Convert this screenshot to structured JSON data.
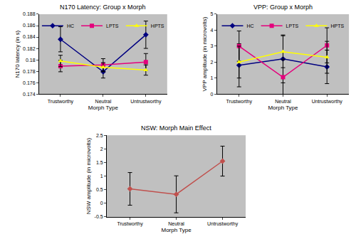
{
  "chart_data": [
    {
      "type": "line",
      "title": "N170 Latency: Group x Morph",
      "x_label": "Morph Type",
      "y_label": "N170 latency (in s)",
      "categories": [
        "Trustworthy",
        "Neutral",
        "Untrustworthy"
      ],
      "series": [
        {
          "name": "HC",
          "color": "#000080",
          "marker": "diamond",
          "values": [
            0.1836,
            0.1779,
            0.1844
          ],
          "errors": [
            0.0022,
            0.0011,
            0.0024
          ]
        },
        {
          "name": "LPTS",
          "color": "#e4007c",
          "marker": "square",
          "values": [
            0.1789,
            0.1791,
            0.1796
          ],
          "errors": [
            0.001,
            0.0011,
            0.0015
          ]
        },
        {
          "name": "HPTS",
          "color": "#ffff00",
          "marker": "triangle",
          "values": [
            0.1798,
            0.1787,
            0.1782
          ],
          "errors": [
            0.001,
            0.0008,
            0.0009
          ]
        }
      ],
      "ylim": [
        0.174,
        0.188
      ],
      "yticks": [
        0.174,
        0.176,
        0.178,
        0.18,
        0.182,
        0.184,
        0.186,
        0.188
      ],
      "grid": false,
      "legend": "top"
    },
    {
      "type": "line",
      "title": "VPP: Group x Morph",
      "x_label": "Morph Type",
      "y_label": "VPP amplitude (in microvolts)",
      "categories": [
        "Trustworthy",
        "Neutral",
        "Untrustworthy"
      ],
      "series": [
        {
          "name": "HC",
          "color": "#000080",
          "marker": "diamond",
          "values": [
            1.8,
            2.2,
            1.7
          ],
          "errors": [
            1.35,
            1.5,
            1.05
          ]
        },
        {
          "name": "LPTS",
          "color": "#e4007c",
          "marker": "square",
          "values": [
            3.0,
            1.05,
            3.05
          ],
          "errors": [
            0.95,
            1.1,
            1.1
          ]
        },
        {
          "name": "HPTS",
          "color": "#ffff00",
          "marker": "triangle",
          "values": [
            2.0,
            2.65,
            2.3
          ],
          "errors": [
            1.0,
            1.0,
            1.0
          ]
        }
      ],
      "ylim": [
        0,
        5
      ],
      "yticks": [
        0,
        1,
        2,
        3,
        4,
        5
      ],
      "grid": false,
      "legend": "top"
    },
    {
      "type": "line",
      "title": "NSW: Morph Main Effect",
      "x_label": "Morph Type",
      "y_label": "NSW amplitude (in microvolts)",
      "categories": [
        "Trustworthy",
        "Neutral",
        "Untrustworthy"
      ],
      "series": [
        {
          "name": "NSW",
          "color": "#c0504d",
          "marker": "diamond",
          "values": [
            0.53,
            0.33,
            1.55
          ],
          "errors": [
            0.6,
            0.68,
            0.55
          ]
        }
      ],
      "ylim": [
        -0.5,
        2.5
      ],
      "yticks": [
        -0.5,
        0,
        0.5,
        1,
        1.5,
        2,
        2.5
      ],
      "grid": false
    }
  ]
}
